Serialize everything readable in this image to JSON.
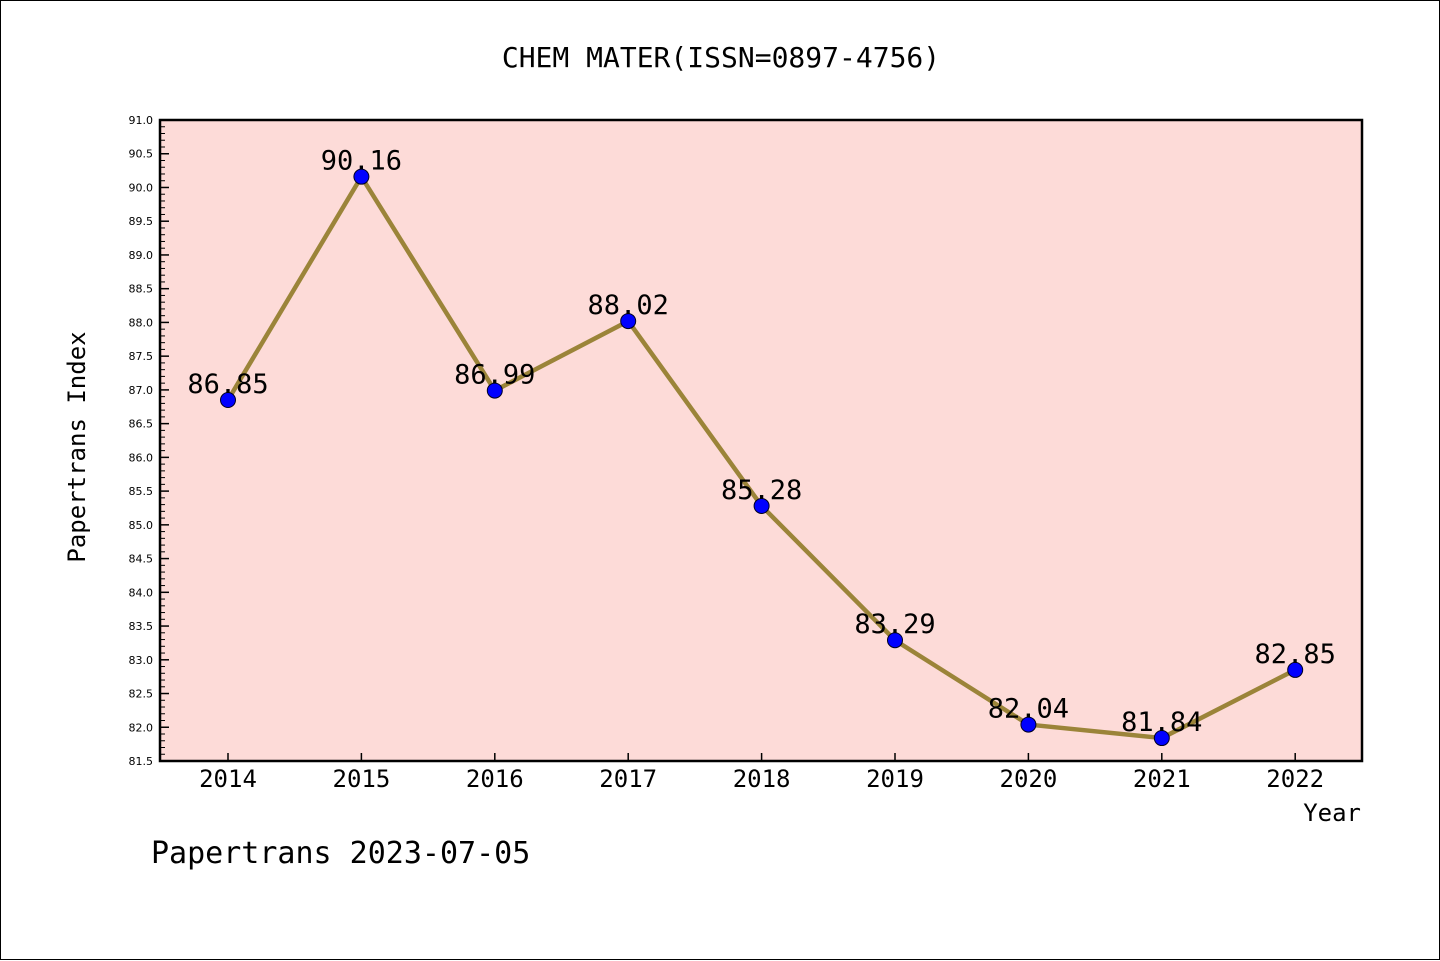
{
  "chart_data": {
    "type": "line",
    "title": "CHEM MATER(ISSN=0897-4756)",
    "xlabel": "Year",
    "ylabel": "Papertrans Index",
    "footer": "Papertrans 2023-07-05",
    "categories": [
      "2014",
      "2015",
      "2016",
      "2017",
      "2018",
      "2019",
      "2020",
      "2021",
      "2022"
    ],
    "series": [
      {
        "values": [
          86.85,
          90.16,
          86.99,
          88.02,
          85.28,
          83.29,
          82.04,
          81.84,
          82.85
        ],
        "data_labels": [
          "86.85",
          "90.16",
          "86.99",
          "88.02",
          "85.28",
          "83.29",
          "82.04",
          "81.84",
          "82.85"
        ]
      }
    ],
    "ylim": [
      81.5,
      91.0
    ],
    "ytick_step": 0.5,
    "ytick_labels": [
      "81.5",
      "82.0",
      "82.5",
      "83.0",
      "83.5",
      "84.0",
      "84.5",
      "85.0",
      "85.5",
      "86.0",
      "86.5",
      "87.0",
      "87.5",
      "88.0",
      "88.5",
      "89.0",
      "89.5",
      "90.0",
      "90.5",
      "91.0"
    ],
    "grid": false,
    "legend": "none",
    "colors": {
      "plot_background": "#fddbd8",
      "line": "#9b8439",
      "marker": "#0000ff",
      "axis": "#000000"
    }
  }
}
